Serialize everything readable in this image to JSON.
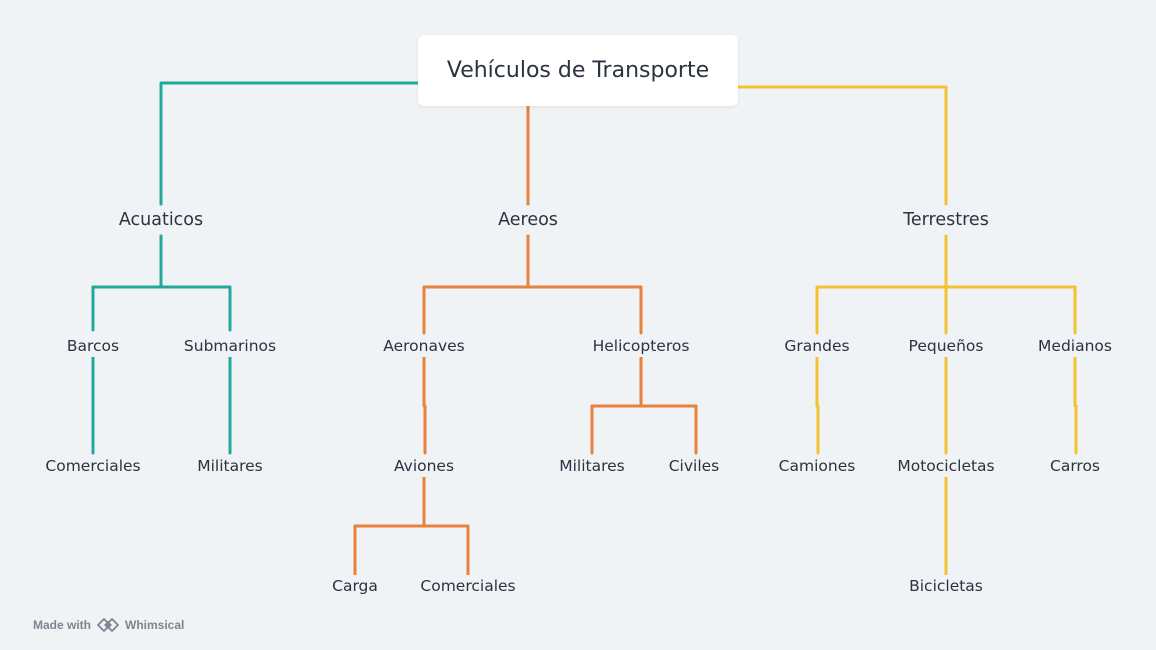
{
  "root": "Vehículos de Transporte",
  "colors": {
    "acuaticos": "#20a89c",
    "aereos": "#e8813a",
    "terrestres": "#f2c230",
    "text": "#2b3340",
    "background": "#f0f3f6"
  },
  "branches": {
    "acuaticos": {
      "label": "Acuaticos",
      "barcos": {
        "label": "Barcos",
        "comerciales": "Comerciales"
      },
      "submarinos": {
        "label": "Submarinos",
        "militares": "Militares"
      }
    },
    "aereos": {
      "label": "Aereos",
      "aeronaves": {
        "label": "Aeronaves",
        "aviones": {
          "label": "Aviones",
          "carga": "Carga",
          "comerciales": "Comerciales"
        }
      },
      "helicopteros": {
        "label": "Helicopteros",
        "militares": "Militares",
        "civiles": "Civiles"
      }
    },
    "terrestres": {
      "label": "Terrestres",
      "grandes": {
        "label": "Grandes",
        "camiones": "Camiones"
      },
      "pequenos": {
        "label": "Pequeños",
        "motocicletas": {
          "label": "Motocicletas",
          "bicicletas": "Bicicletas"
        }
      },
      "medianos": {
        "label": "Medianos",
        "carros": "Carros"
      }
    }
  },
  "watermark": {
    "prefix": "Made with",
    "brand": "Whimsical",
    "logo_icon": "whimsical-logo-icon"
  }
}
